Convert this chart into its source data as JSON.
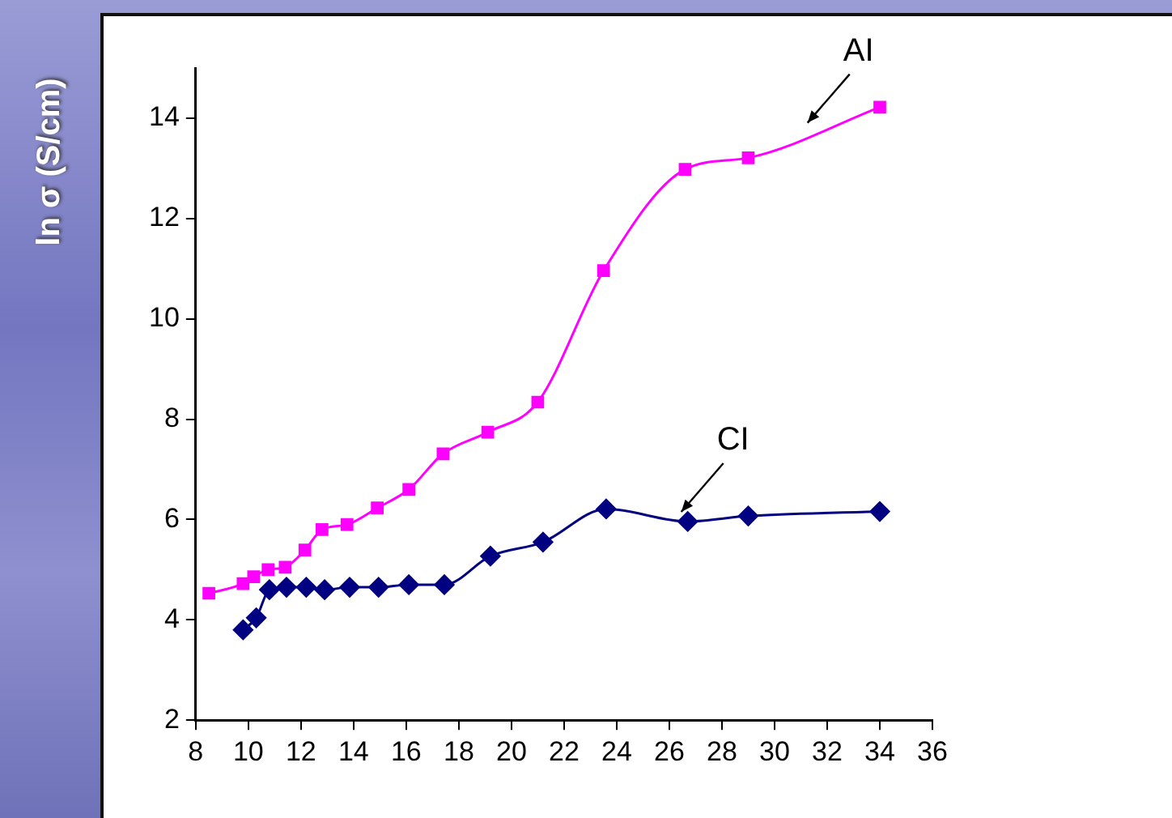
{
  "chart_data": {
    "type": "line",
    "ylabel": "ln σ (S/cm)",
    "xlim": [
      8,
      36
    ],
    "xticks": [
      8,
      10,
      12,
      14,
      16,
      18,
      20,
      22,
      24,
      26,
      28,
      30,
      32,
      34,
      36
    ],
    "ylim": [
      2,
      15
    ],
    "yticks": [
      2,
      4,
      6,
      8,
      10,
      12,
      14
    ],
    "grid": false,
    "legend": false,
    "series": [
      {
        "name": "AI",
        "color": "#ff00ff",
        "marker": "square",
        "x": [
          8.5,
          9.8,
          10.2,
          10.75,
          11.4,
          12.15,
          12.8,
          13.75,
          14.9,
          16.1,
          17.4,
          19.1,
          21.0,
          23.5,
          26.6,
          29.0,
          34.0
        ],
        "values": [
          4.53,
          4.72,
          4.86,
          5.0,
          5.05,
          5.39,
          5.8,
          5.9,
          6.23,
          6.6,
          7.31,
          7.74,
          8.34,
          10.96,
          12.98,
          13.21,
          14.22
        ]
      },
      {
        "name": "CI",
        "color": "#000080",
        "marker": "diamond",
        "x": [
          9.8,
          10.3,
          10.8,
          11.45,
          12.2,
          12.9,
          13.85,
          14.95,
          16.1,
          17.45,
          19.2,
          21.2,
          23.6,
          26.7,
          29.0,
          34.0
        ],
        "values": [
          3.8,
          4.04,
          4.6,
          4.65,
          4.65,
          4.6,
          4.65,
          4.65,
          4.7,
          4.7,
          5.27,
          5.55,
          6.21,
          5.96,
          6.07,
          6.16
        ]
      }
    ]
  }
}
